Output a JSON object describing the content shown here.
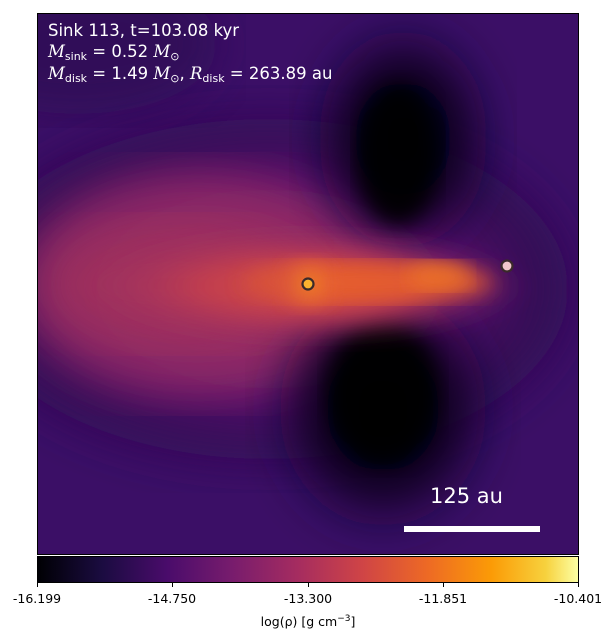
{
  "image": {
    "description_of_colormap": "inferno",
    "title_line1": "Sink 113, t=103.08 kyr",
    "m_sink_label": "M",
    "m_sink_sub": "sink",
    "m_sink_value": " = 0.52 ",
    "m_sink_unit": "M",
    "m_sink_unit_sub": "⊙",
    "m_disk_label": "M",
    "m_disk_sub": "disk",
    "m_disk_value": " = 1.49 ",
    "m_disk_unit": "M",
    "m_disk_unit_sub": "⊙",
    "r_disk_prefix": ", ",
    "r_disk_label": "R",
    "r_disk_sub": "disk",
    "r_disk_value": " = 263.89 au",
    "scale_bar_label": "125 au"
  },
  "colorbar": {
    "ticks": [
      "-16.199",
      "-14.750",
      "-13.300",
      "-11.851",
      "-10.401"
    ],
    "label_pre": "log(ρ) [g cm",
    "label_sup": "−3",
    "label_post": "]"
  },
  "colors": {
    "background": "#000004",
    "disk_core": "#f07a28",
    "sink_primary": "#fbb32f",
    "sink_secondary": "#f2c6cc"
  }
}
